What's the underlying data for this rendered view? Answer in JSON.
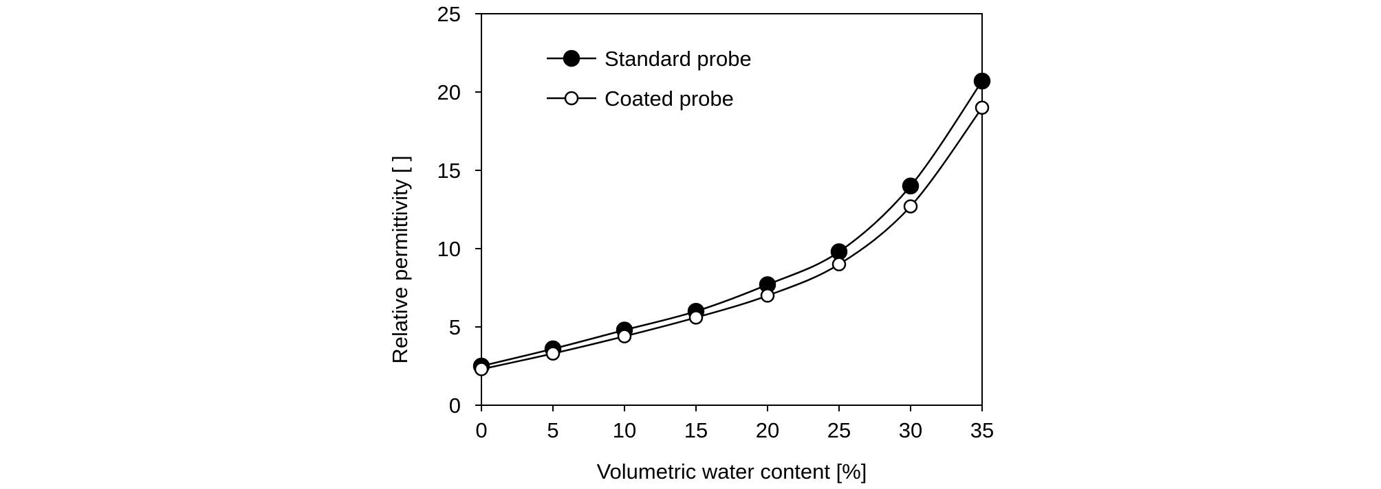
{
  "chart_data": {
    "type": "line",
    "title": "",
    "xlabel": "Volumetric water content [%]",
    "ylabel": "Relative permittivity [ ]",
    "xlim": [
      0,
      35
    ],
    "ylim": [
      0,
      25
    ],
    "x_ticks": [
      0,
      5,
      10,
      15,
      20,
      25,
      30,
      35
    ],
    "y_ticks": [
      0,
      5,
      10,
      15,
      20,
      25
    ],
    "x_tick_labels": [
      "0",
      "5",
      "10",
      "15",
      "20",
      "25",
      "30",
      "35"
    ],
    "y_tick_labels": [
      "0",
      "5",
      "10",
      "15",
      "20",
      "25"
    ],
    "grid": false,
    "legend_position": "top-left",
    "x": [
      0,
      5,
      10,
      15,
      20,
      25,
      30,
      35
    ],
    "series": [
      {
        "name": "Standard probe",
        "marker": "filled-circle",
        "values": [
          2.5,
          3.6,
          4.8,
          6.0,
          7.7,
          9.8,
          14.0,
          20.7
        ]
      },
      {
        "name": "Coated probe",
        "marker": "open-circle",
        "values": [
          2.3,
          3.3,
          4.4,
          5.6,
          7.0,
          9.0,
          12.7,
          19.0
        ]
      }
    ],
    "colors": {
      "line": "#000000",
      "marker_fill_filled": "#000000",
      "marker_fill_open": "#ffffff"
    }
  }
}
